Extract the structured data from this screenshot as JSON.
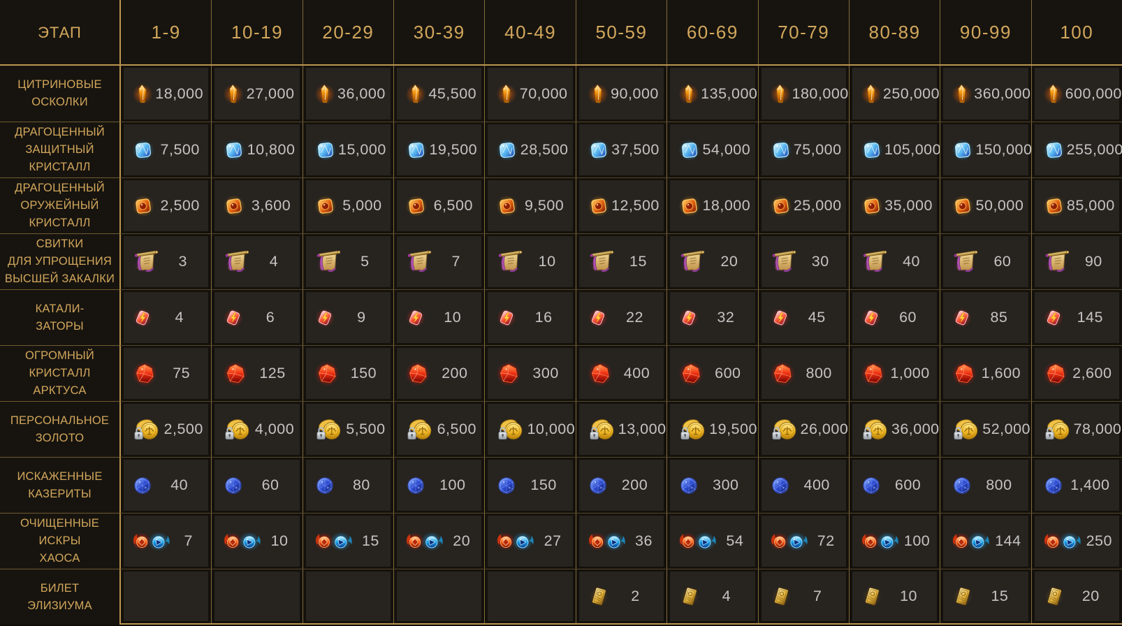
{
  "table": {
    "stage_header": "ЭТАП",
    "columns": [
      "1-9",
      "10-19",
      "20-29",
      "30-39",
      "40-49",
      "50-59",
      "60-69",
      "70-79",
      "80-89",
      "90-99",
      "100"
    ],
    "rows": [
      {
        "label_lines": [
          "ЦИТРИНОВЫЕ",
          "ОСКОЛКИ"
        ],
        "icon": "citrine-shards-icon",
        "values": [
          "18,000",
          "27,000",
          "36,000",
          "45,500",
          "70,000",
          "90,000",
          "135,000",
          "180,000",
          "250,000",
          "360,000",
          "600,000"
        ]
      },
      {
        "label_lines": [
          "ДРАГОЦЕННЫЙ",
          "ЗАЩИТНЫЙ",
          "КРИСТАЛЛ"
        ],
        "icon": "defense-crystal-icon",
        "values": [
          "7,500",
          "10,800",
          "15,000",
          "19,500",
          "28,500",
          "37,500",
          "54,000",
          "75,000",
          "105,000",
          "150,000",
          "255,000"
        ]
      },
      {
        "label_lines": [
          "ДРАГОЦЕННЫЙ",
          "ОРУЖЕЙНЫЙ",
          "КРИСТАЛЛ"
        ],
        "icon": "weapon-crystal-icon",
        "values": [
          "2,500",
          "3,600",
          "5,000",
          "6,500",
          "9,500",
          "12,500",
          "18,000",
          "25,000",
          "35,000",
          "50,000",
          "85,000"
        ]
      },
      {
        "label_lines": [
          "СВИТКИ",
          "ДЛЯ УПРОЩЕНИЯ",
          "ВЫСШЕЙ ЗАКАЛКИ"
        ],
        "icon": "tempering-scroll-icon",
        "values": [
          "3",
          "4",
          "5",
          "7",
          "10",
          "15",
          "20",
          "30",
          "40",
          "60",
          "90"
        ]
      },
      {
        "label_lines": [
          "КАТАЛИ-",
          "ЗАТОРЫ"
        ],
        "icon": "catalyst-icon",
        "values": [
          "4",
          "6",
          "9",
          "10",
          "16",
          "22",
          "32",
          "45",
          "60",
          "85",
          "145"
        ]
      },
      {
        "label_lines": [
          "ОГРОМНЫЙ",
          "КРИСТАЛЛ",
          "АРКТУСА"
        ],
        "icon": "arktus-crystal-icon",
        "values": [
          "75",
          "125",
          "150",
          "200",
          "300",
          "400",
          "600",
          "800",
          "1,000",
          "1,600",
          "2,600"
        ]
      },
      {
        "label_lines": [
          "ПЕРСОНАЛЬНОЕ",
          "ЗОЛОТО"
        ],
        "icon": "personal-gold-icon",
        "values": [
          "2,500",
          "4,000",
          "5,500",
          "6,500",
          "10,000",
          "13,000",
          "19,500",
          "26,000",
          "36,000",
          "52,000",
          "78,000"
        ]
      },
      {
        "label_lines": [
          "ИСКАЖЕННЫЕ",
          "КАЗЕРИТЫ"
        ],
        "icon": "kazerite-icon",
        "values": [
          "40",
          "60",
          "80",
          "100",
          "150",
          "200",
          "300",
          "400",
          "600",
          "800",
          "1,400"
        ]
      },
      {
        "label_lines": [
          "ОЧИЩЕННЫЕ",
          "ИСКРЫ",
          "ХАОСА"
        ],
        "icon": "chaos-sparks-icon",
        "values": [
          "7",
          "10",
          "15",
          "20",
          "27",
          "36",
          "54",
          "72",
          "100",
          "144",
          "250"
        ]
      },
      {
        "label_lines": [
          "БИЛЕТ",
          "ЭЛИЗИУМА"
        ],
        "icon": "elysium-ticket-icon",
        "values": [
          null,
          null,
          null,
          null,
          null,
          "2",
          "4",
          "7",
          "10",
          "15",
          "20"
        ]
      }
    ]
  },
  "colors": {
    "background": "#0f0d0a",
    "panel": "#17140f",
    "cell": "#272420",
    "cell_gap": "#14110d",
    "gold_text": "#d2a75c",
    "value_text": "#c5c4c2",
    "grid_bright": "#bb9551",
    "grid_vertical": "#826b3a",
    "grid_row_label": "#6e5a30",
    "grid_row_data": "#554828"
  }
}
